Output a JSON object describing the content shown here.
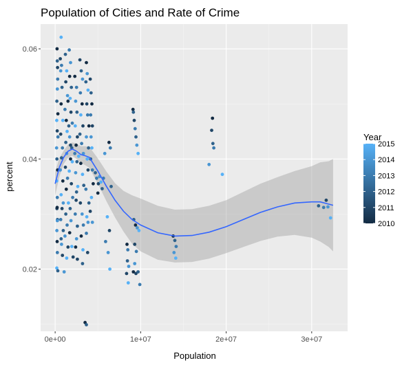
{
  "chart_data": {
    "type": "scatter",
    "title": "Population of Cities and Rate of Crime",
    "xlabel": "Population",
    "ylabel": "percent",
    "xlim": [
      -1700000,
      34200000
    ],
    "ylim": [
      0.0087,
      0.0645
    ],
    "x_ticks": [
      0,
      10000000,
      20000000,
      30000000
    ],
    "x_tick_labels": [
      "0e+00",
      "1e+07",
      "2e+07",
      "3e+07"
    ],
    "y_ticks": [
      0.02,
      0.04,
      0.06
    ],
    "y_tick_labels": [
      "0.02",
      "0.04",
      "0.06"
    ],
    "grid": true,
    "legend": {
      "title": "Year",
      "position": "right",
      "breaks": [
        2010,
        2011,
        2012,
        2013,
        2014,
        2015
      ],
      "range": [
        2010,
        2015
      ],
      "low_color": "#132B43",
      "high_color": "#56B1F7"
    },
    "smooth": {
      "color": "#3366FF",
      "band_color": "#999999",
      "x": [
        0,
        500000,
        1000000,
        1500000,
        2000000,
        2500000,
        3000000,
        3500000,
        4000000,
        5000000,
        6000000,
        7000000,
        8000000,
        9000000,
        10000000,
        12000000,
        14000000,
        16000000,
        18000000,
        20000000,
        22000000,
        24000000,
        26000000,
        28000000,
        30000000,
        31000000,
        32000000,
        32500000
      ],
      "y": [
        0.0355,
        0.0385,
        0.0403,
        0.0414,
        0.0418,
        0.0414,
        0.0408,
        0.0406,
        0.0403,
        0.0378,
        0.035,
        0.0325,
        0.0305,
        0.029,
        0.028,
        0.0266,
        0.026,
        0.0261,
        0.0267,
        0.0277,
        0.029,
        0.0303,
        0.0313,
        0.032,
        0.0322,
        0.0322,
        0.0318,
        0.0316
      ],
      "ymin": [
        0.0333,
        0.0368,
        0.0391,
        0.0402,
        0.0406,
        0.04,
        0.0393,
        0.0389,
        0.0384,
        0.0355,
        0.0323,
        0.0294,
        0.0268,
        0.0246,
        0.0232,
        0.0217,
        0.0212,
        0.0213,
        0.0219,
        0.0229,
        0.024,
        0.0251,
        0.0259,
        0.0262,
        0.0257,
        0.025,
        0.024,
        0.0232
      ],
      "ymax": [
        0.0377,
        0.0402,
        0.0415,
        0.0426,
        0.043,
        0.0428,
        0.0423,
        0.0423,
        0.0422,
        0.0401,
        0.0377,
        0.0356,
        0.0342,
        0.0334,
        0.0328,
        0.0315,
        0.0308,
        0.0309,
        0.0315,
        0.0325,
        0.034,
        0.0355,
        0.0367,
        0.0378,
        0.0387,
        0.0394,
        0.0396,
        0.04
      ]
    },
    "points": [
      [
        220000,
        0.06,
        2010
      ],
      [
        250000,
        0.0578,
        2012
      ],
      [
        280000,
        0.0566,
        2011
      ],
      [
        300000,
        0.0545,
        2013
      ],
      [
        260000,
        0.0527,
        2014
      ],
      [
        200000,
        0.0505,
        2012
      ],
      [
        320000,
        0.0482,
        2010
      ],
      [
        180000,
        0.047,
        2015
      ],
      [
        240000,
        0.0451,
        2011
      ],
      [
        330000,
        0.044,
        2013
      ],
      [
        170000,
        0.042,
        2014
      ],
      [
        210000,
        0.04,
        2012
      ],
      [
        290000,
        0.038,
        2010
      ],
      [
        180000,
        0.036,
        2015
      ],
      [
        250000,
        0.033,
        2013
      ],
      [
        210000,
        0.031,
        2011
      ],
      [
        270000,
        0.029,
        2012
      ],
      [
        200000,
        0.027,
        2014
      ],
      [
        230000,
        0.025,
        2010
      ],
      [
        260000,
        0.023,
        2013
      ],
      [
        190000,
        0.0202,
        2015
      ],
      [
        310000,
        0.0197,
        2012
      ],
      [
        230000,
        0.0312,
        2010
      ],
      [
        260000,
        0.0288,
        2014
      ],
      [
        700000,
        0.0621,
        2015
      ],
      [
        600000,
        0.0582,
        2011
      ],
      [
        750000,
        0.057,
        2013
      ],
      [
        650000,
        0.056,
        2014
      ],
      [
        800000,
        0.053,
        2012
      ],
      [
        700000,
        0.05,
        2010
      ],
      [
        900000,
        0.047,
        2015
      ],
      [
        650000,
        0.0445,
        2011
      ],
      [
        850000,
        0.042,
        2013
      ],
      [
        750000,
        0.0402,
        2012
      ],
      [
        600000,
        0.038,
        2014
      ],
      [
        900000,
        0.036,
        2010
      ],
      [
        700000,
        0.0335,
        2015
      ],
      [
        800000,
        0.031,
        2011
      ],
      [
        650000,
        0.029,
        2013
      ],
      [
        950000,
        0.027,
        2012
      ],
      [
        750000,
        0.0245,
        2014
      ],
      [
        850000,
        0.0225,
        2011
      ],
      [
        1050000,
        0.0195,
        2014
      ],
      [
        700000,
        0.0255,
        2012
      ],
      [
        950000,
        0.032,
        2014
      ],
      [
        1200000,
        0.059,
        2012
      ],
      [
        1350000,
        0.056,
        2015
      ],
      [
        1250000,
        0.054,
        2011
      ],
      [
        1450000,
        0.0515,
        2014
      ],
      [
        1150000,
        0.049,
        2013
      ],
      [
        1300000,
        0.047,
        2010
      ],
      [
        1400000,
        0.045,
        2015
      ],
      [
        1250000,
        0.043,
        2012
      ],
      [
        1350000,
        0.041,
        2014
      ],
      [
        1200000,
        0.0385,
        2011
      ],
      [
        1450000,
        0.0365,
        2013
      ],
      [
        1300000,
        0.0345,
        2010
      ],
      [
        1550000,
        0.032,
        2015
      ],
      [
        1250000,
        0.03,
        2012
      ],
      [
        1400000,
        0.028,
        2013
      ],
      [
        1150000,
        0.026,
        2014
      ],
      [
        1500000,
        0.024,
        2011
      ],
      [
        1350000,
        0.022,
        2015
      ],
      [
        1500000,
        0.0505,
        2010
      ],
      [
        1600000,
        0.046,
        2012
      ],
      [
        1650000,
        0.0598,
        2013
      ],
      [
        1800000,
        0.0575,
        2014
      ],
      [
        1700000,
        0.055,
        2010
      ],
      [
        1900000,
        0.053,
        2012
      ],
      [
        1750000,
        0.051,
        2015
      ],
      [
        1850000,
        0.0485,
        2011
      ],
      [
        2000000,
        0.0465,
        2013
      ],
      [
        1700000,
        0.044,
        2014
      ],
      [
        1950000,
        0.042,
        2012
      ],
      [
        1800000,
        0.04,
        2010
      ],
      [
        1650000,
        0.0378,
        2015
      ],
      [
        1900000,
        0.0355,
        2011
      ],
      [
        2050000,
        0.033,
        2013
      ],
      [
        1750000,
        0.031,
        2012
      ],
      [
        1850000,
        0.0288,
        2014
      ],
      [
        1700000,
        0.0266,
        2010
      ],
      [
        1950000,
        0.0241,
        2015
      ],
      [
        2100000,
        0.0222,
        2011
      ],
      [
        1800000,
        0.0425,
        2011
      ],
      [
        2000000,
        0.0395,
        2015
      ],
      [
        2300000,
        0.055,
        2010
      ],
      [
        2500000,
        0.053,
        2013
      ],
      [
        2400000,
        0.0505,
        2014
      ],
      [
        2550000,
        0.0485,
        2012
      ],
      [
        2350000,
        0.046,
        2015
      ],
      [
        2600000,
        0.044,
        2011
      ],
      [
        2450000,
        0.0425,
        2010
      ],
      [
        2300000,
        0.041,
        2013
      ],
      [
        2550000,
        0.0395,
        2012
      ],
      [
        2400000,
        0.0375,
        2014
      ],
      [
        2650000,
        0.035,
        2015
      ],
      [
        2450000,
        0.0325,
        2011
      ],
      [
        2350000,
        0.03,
        2013
      ],
      [
        2600000,
        0.0278,
        2012
      ],
      [
        2500000,
        0.0255,
        2014
      ],
      [
        2400000,
        0.024,
        2010
      ],
      [
        2600000,
        0.0218,
        2011
      ],
      [
        2500000,
        0.034,
        2012
      ],
      [
        2750000,
        0.0405,
        2015
      ],
      [
        2900000,
        0.058,
        2011
      ],
      [
        3050000,
        0.056,
        2012
      ],
      [
        3200000,
        0.0545,
        2014
      ],
      [
        2950000,
        0.052,
        2013
      ],
      [
        3150000,
        0.05,
        2010
      ],
      [
        3000000,
        0.048,
        2015
      ],
      [
        3250000,
        0.046,
        2011
      ],
      [
        2900000,
        0.0445,
        2012
      ],
      [
        3100000,
        0.0428,
        2013
      ],
      [
        3300000,
        0.041,
        2014
      ],
      [
        3000000,
        0.0392,
        2010
      ],
      [
        3200000,
        0.0372,
        2015
      ],
      [
        3350000,
        0.0352,
        2012
      ],
      [
        2950000,
        0.032,
        2011
      ],
      [
        3150000,
        0.03,
        2014
      ],
      [
        3300000,
        0.028,
        2013
      ],
      [
        3050000,
        0.026,
        2010
      ],
      [
        3250000,
        0.0235,
        2015
      ],
      [
        3200000,
        0.021,
        2012
      ],
      [
        3650000,
        0.0575,
        2010
      ],
      [
        3750000,
        0.0555,
        2014
      ],
      [
        3600000,
        0.054,
        2012
      ],
      [
        3850000,
        0.0525,
        2015
      ],
      [
        3700000,
        0.05,
        2011
      ],
      [
        3800000,
        0.048,
        2013
      ],
      [
        3950000,
        0.046,
        2010
      ],
      [
        3650000,
        0.044,
        2014
      ],
      [
        3900000,
        0.042,
        2012
      ],
      [
        3750000,
        0.04,
        2015
      ],
      [
        3850000,
        0.038,
        2011
      ],
      [
        3600000,
        0.0345,
        2013
      ],
      [
        3950000,
        0.032,
        2012
      ],
      [
        3700000,
        0.0295,
        2015
      ],
      [
        3850000,
        0.0285,
        2014
      ],
      [
        3650000,
        0.0265,
        2013
      ],
      [
        3800000,
        0.023,
        2011
      ],
      [
        3500000,
        0.0103,
        2010
      ],
      [
        3650000,
        0.0099,
        2012
      ],
      [
        4100000,
        0.0545,
        2011
      ],
      [
        4200000,
        0.052,
        2012
      ],
      [
        4300000,
        0.05,
        2010
      ],
      [
        4150000,
        0.048,
        2013
      ],
      [
        4350000,
        0.046,
        2011
      ],
      [
        4200000,
        0.044,
        2014
      ],
      [
        4300000,
        0.042,
        2015
      ],
      [
        4150000,
        0.04,
        2012
      ],
      [
        4350000,
        0.038,
        2013
      ],
      [
        4450000,
        0.0355,
        2010
      ],
      [
        4250000,
        0.033,
        2015
      ],
      [
        4100000,
        0.0305,
        2011
      ],
      [
        4350000,
        0.0285,
        2014
      ],
      [
        4700000,
        0.0375,
        2012
      ],
      [
        4850000,
        0.0365,
        2013
      ],
      [
        5050000,
        0.0355,
        2011
      ],
      [
        5200000,
        0.0368,
        2014
      ],
      [
        5350000,
        0.0358,
        2015
      ],
      [
        5500000,
        0.0346,
        2012
      ],
      [
        5650000,
        0.0365,
        2013
      ],
      [
        5000000,
        0.0338,
        2010
      ],
      [
        6300000,
        0.043,
        2010
      ],
      [
        6450000,
        0.042,
        2013
      ],
      [
        5800000,
        0.041,
        2014
      ],
      [
        6550000,
        0.035,
        2012
      ],
      [
        6100000,
        0.0295,
        2015
      ],
      [
        6350000,
        0.027,
        2011
      ],
      [
        5900000,
        0.025,
        2013
      ],
      [
        6200000,
        0.023,
        2014
      ],
      [
        6400000,
        0.02,
        2015
      ],
      [
        8400000,
        0.0245,
        2010
      ],
      [
        8500000,
        0.0235,
        2013
      ],
      [
        8450000,
        0.0215,
        2012
      ],
      [
        8600000,
        0.0205,
        2014
      ],
      [
        8350000,
        0.0192,
        2011
      ],
      [
        8550000,
        0.0175,
        2015
      ],
      [
        9100000,
        0.049,
        2010
      ],
      [
        9150000,
        0.0485,
        2012
      ],
      [
        9250000,
        0.047,
        2011
      ],
      [
        9350000,
        0.0455,
        2013
      ],
      [
        9450000,
        0.044,
        2012
      ],
      [
        9550000,
        0.0425,
        2014
      ],
      [
        9700000,
        0.041,
        2015
      ],
      [
        9200000,
        0.029,
        2012
      ],
      [
        9400000,
        0.028,
        2010
      ],
      [
        9600000,
        0.0275,
        2014
      ],
      [
        9800000,
        0.027,
        2015
      ],
      [
        9300000,
        0.0245,
        2011
      ],
      [
        9500000,
        0.0232,
        2013
      ],
      [
        9150000,
        0.0195,
        2010
      ],
      [
        9450000,
        0.0192,
        2011
      ],
      [
        9700000,
        0.0195,
        2012
      ],
      [
        9900000,
        0.0172,
        2013
      ],
      [
        9300000,
        0.021,
        2014
      ],
      [
        13800000,
        0.026,
        2010
      ],
      [
        14000000,
        0.0252,
        2012
      ],
      [
        14150000,
        0.0241,
        2013
      ],
      [
        13900000,
        0.023,
        2014
      ],
      [
        14100000,
        0.022,
        2015
      ],
      [
        18400000,
        0.0474,
        2010
      ],
      [
        18300000,
        0.0452,
        2011
      ],
      [
        18450000,
        0.0428,
        2012
      ],
      [
        18550000,
        0.042,
        2013
      ],
      [
        18000000,
        0.039,
        2014
      ],
      [
        19550000,
        0.0372,
        2015
      ],
      [
        30800000,
        0.0315,
        2012
      ],
      [
        31400000,
        0.0312,
        2013
      ],
      [
        31700000,
        0.0325,
        2011
      ],
      [
        31900000,
        0.0313,
        2014
      ],
      [
        32200000,
        0.0293,
        2015
      ]
    ]
  }
}
